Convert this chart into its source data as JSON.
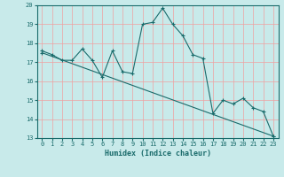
{
  "title": "",
  "xlabel": "Humidex (Indice chaleur)",
  "bg_color": "#c8eaea",
  "grid_color": "#f0a0a0",
  "line_color": "#1a6b6b",
  "xlim": [
    -0.5,
    23.5
  ],
  "ylim": [
    13,
    20
  ],
  "xticks": [
    0,
    1,
    2,
    3,
    4,
    5,
    6,
    7,
    8,
    9,
    10,
    11,
    12,
    13,
    14,
    15,
    16,
    17,
    18,
    19,
    20,
    21,
    22,
    23
  ],
  "yticks": [
    13,
    14,
    15,
    16,
    17,
    18,
    19,
    20
  ],
  "line1_x": [
    0,
    1,
    2,
    3,
    4,
    5,
    6,
    7,
    8,
    9,
    10,
    11,
    12,
    13,
    14,
    15,
    16,
    17,
    18,
    19,
    20,
    21,
    22,
    23
  ],
  "line1_y": [
    17.6,
    17.4,
    17.1,
    17.1,
    17.7,
    17.1,
    16.2,
    17.6,
    16.5,
    16.4,
    19.0,
    19.1,
    19.85,
    19.0,
    18.4,
    17.4,
    17.2,
    14.3,
    15.0,
    14.8,
    15.1,
    14.6,
    14.4,
    13.1
  ],
  "line2_x": [
    0,
    23
  ],
  "line2_y": [
    17.5,
    13.1
  ]
}
